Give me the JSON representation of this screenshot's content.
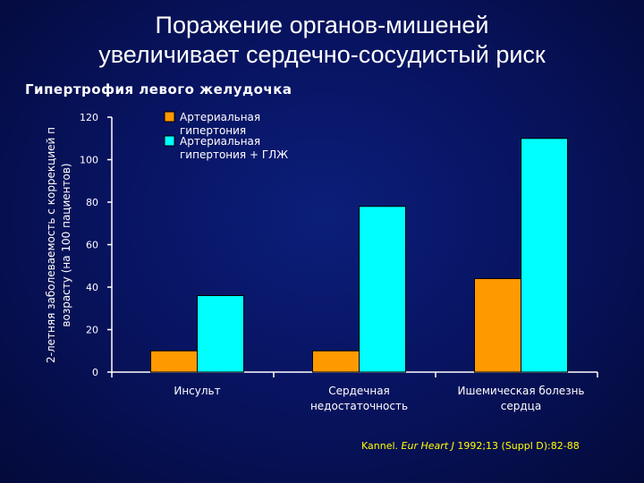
{
  "slide": {
    "title_line1": "Поражение органов-мишеней",
    "title_line2": "увеличивает сердечно-сосудистый риск",
    "subtitle": "Гипертрофия левого желудочка"
  },
  "citation": {
    "author": "Kannel.",
    "journal": "Eur Heart J",
    "details": "1992;13 (Suppl D):82-88"
  },
  "colors": {
    "series1": "#ff9900",
    "series2": "#00ffff",
    "axis": "#ffffff",
    "citation": "#ffff00"
  },
  "chart_data": {
    "type": "bar",
    "title": "Гипертрофия левого желудочка",
    "ylabel_line1": "2-летняя заболеваемость с коррекцией п",
    "ylabel_line2": "возрасту (на 100 пациентов)",
    "xlabel": "",
    "ylim": [
      0,
      120
    ],
    "yticks": [
      0,
      20,
      40,
      60,
      80,
      100,
      120
    ],
    "categories": [
      [
        "Инсульт"
      ],
      [
        "Сердечная",
        "недостаточность"
      ],
      [
        "Ишемическая болезнь",
        "сердца"
      ]
    ],
    "series": [
      {
        "name_lines": [
          "Артериальная",
          "гипертония"
        ],
        "values": [
          10,
          10,
          44
        ]
      },
      {
        "name_lines": [
          "Артериальная",
          "гипертония + ГЛЖ"
        ],
        "values": [
          36,
          78,
          110
        ]
      }
    ],
    "legend_position": "top-left"
  }
}
